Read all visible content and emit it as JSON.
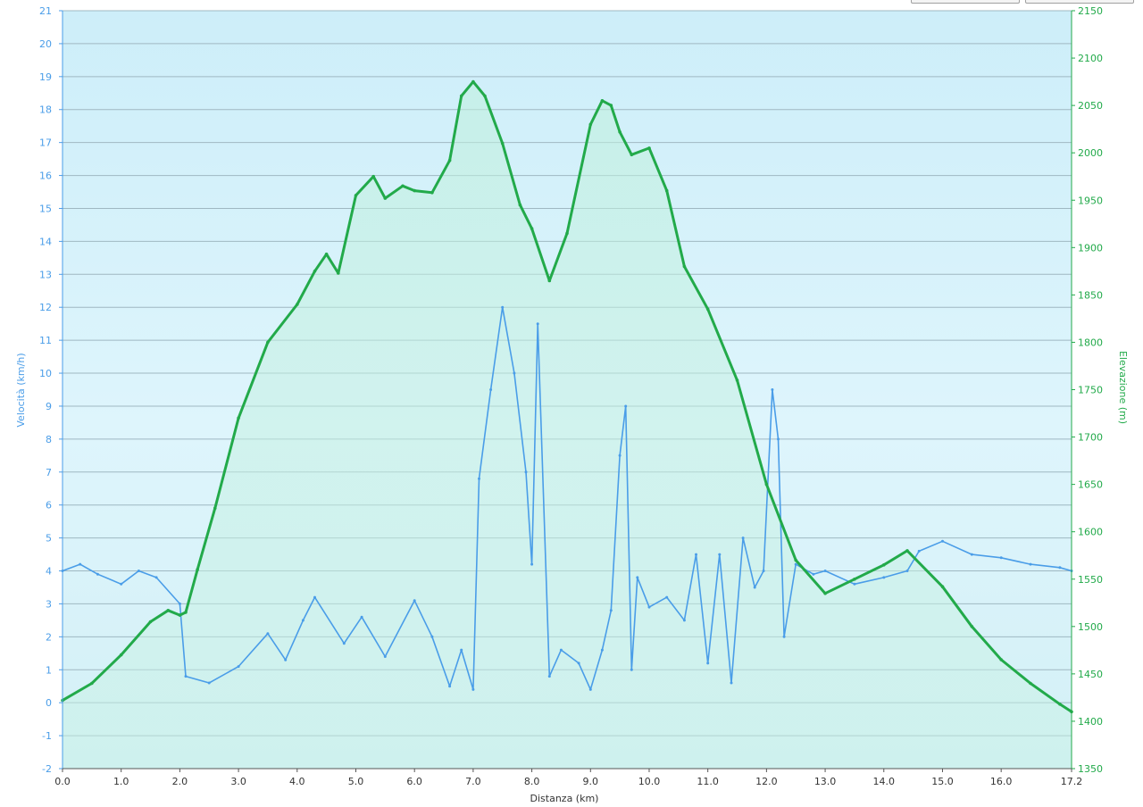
{
  "chart_data": {
    "type": "line",
    "xlabel": "Distanza  (km)",
    "ylabel": "Velocità (km/h)",
    "y2label": "Elevazione (m)",
    "xlim": [
      0,
      17.2
    ],
    "ylim": [
      -2,
      21
    ],
    "y2lim": [
      1350,
      2150
    ],
    "x_ticks": [
      "0.0",
      "1.0",
      "2.0",
      "3.0",
      "4.0",
      "5.0",
      "6.0",
      "7.0",
      "8.0",
      "9.0",
      "10.0",
      "11.0",
      "12.0",
      "13.0",
      "14.0",
      "15.0",
      "16.0",
      "17.2"
    ],
    "y_ticks": [
      -2,
      -1,
      0,
      1,
      2,
      3,
      4,
      5,
      6,
      7,
      8,
      9,
      10,
      11,
      12,
      13,
      14,
      15,
      16,
      17,
      18,
      19,
      20,
      21
    ],
    "y2_ticks": [
      1350,
      1400,
      1450,
      1500,
      1550,
      1600,
      1650,
      1700,
      1750,
      1800,
      1850,
      1900,
      1950,
      2000,
      2050,
      2100,
      2150
    ],
    "grid": true,
    "colors": {
      "speed": "#4a9de8",
      "elevation": "#22aa4a",
      "axis_left": "#4a9de8",
      "axis_right": "#22aa4a"
    },
    "series": [
      {
        "name": "Velocità",
        "axis": "left",
        "x": [
          0.0,
          0.3,
          0.6,
          1.0,
          1.3,
          1.6,
          2.0,
          2.1,
          2.5,
          3.0,
          3.5,
          3.8,
          4.1,
          4.3,
          4.8,
          5.1,
          5.5,
          6.0,
          6.3,
          6.6,
          6.8,
          7.0,
          7.1,
          7.3,
          7.5,
          7.7,
          7.9,
          8.0,
          8.1,
          8.3,
          8.5,
          8.8,
          9.0,
          9.2,
          9.35,
          9.5,
          9.6,
          9.7,
          9.8,
          10.0,
          10.3,
          10.6,
          10.8,
          11.0,
          11.2,
          11.4,
          11.6,
          11.8,
          11.95,
          12.1,
          12.2,
          12.3,
          12.5,
          12.8,
          13.0,
          13.5,
          14.0,
          14.4,
          14.6,
          15.0,
          15.5,
          16.0,
          16.5,
          17.0,
          17.2
        ],
        "values": [
          4.0,
          4.2,
          3.9,
          3.6,
          4.0,
          3.8,
          3.0,
          0.8,
          0.6,
          1.1,
          2.1,
          1.3,
          2.5,
          3.2,
          1.8,
          2.6,
          1.4,
          3.1,
          2.0,
          0.5,
          1.6,
          0.4,
          6.8,
          9.5,
          12.0,
          10.0,
          7.0,
          4.2,
          11.5,
          0.8,
          1.6,
          1.2,
          0.4,
          1.6,
          2.8,
          7.5,
          9.0,
          1.0,
          3.8,
          2.9,
          3.2,
          2.5,
          4.5,
          1.2,
          4.5,
          0.6,
          5.0,
          3.5,
          4.0,
          9.5,
          8.0,
          2.0,
          4.2,
          3.9,
          4.0,
          3.6,
          3.8,
          4.0,
          4.6,
          4.9,
          4.5,
          4.4,
          4.2,
          4.1,
          4.0
        ]
      },
      {
        "name": "Elevazione",
        "axis": "right",
        "x": [
          0.0,
          0.5,
          1.0,
          1.5,
          1.8,
          2.0,
          2.1,
          2.3,
          2.6,
          3.0,
          3.5,
          4.0,
          4.3,
          4.5,
          4.7,
          5.0,
          5.3,
          5.5,
          5.8,
          6.0,
          6.3,
          6.6,
          6.8,
          7.0,
          7.2,
          7.5,
          7.8,
          8.0,
          8.3,
          8.6,
          9.0,
          9.2,
          9.35,
          9.5,
          9.7,
          10.0,
          10.3,
          10.6,
          11.0,
          11.5,
          12.0,
          12.5,
          13.0,
          13.5,
          14.0,
          14.4,
          15.0,
          15.5,
          16.0,
          16.5,
          17.0,
          17.2
        ],
        "values": [
          1422,
          1440,
          1470,
          1505,
          1517,
          1512,
          1515,
          1560,
          1625,
          1720,
          1800,
          1840,
          1875,
          1893,
          1873,
          1955,
          1975,
          1952,
          1965,
          1960,
          1958,
          1992,
          2060,
          2075,
          2060,
          2010,
          1945,
          1920,
          1865,
          1915,
          2030,
          2055,
          2050,
          2022,
          1998,
          2005,
          1960,
          1880,
          1835,
          1760,
          1650,
          1570,
          1535,
          1550,
          1565,
          1580,
          1542,
          1500,
          1465,
          1440,
          1418,
          1410
        ]
      }
    ]
  }
}
